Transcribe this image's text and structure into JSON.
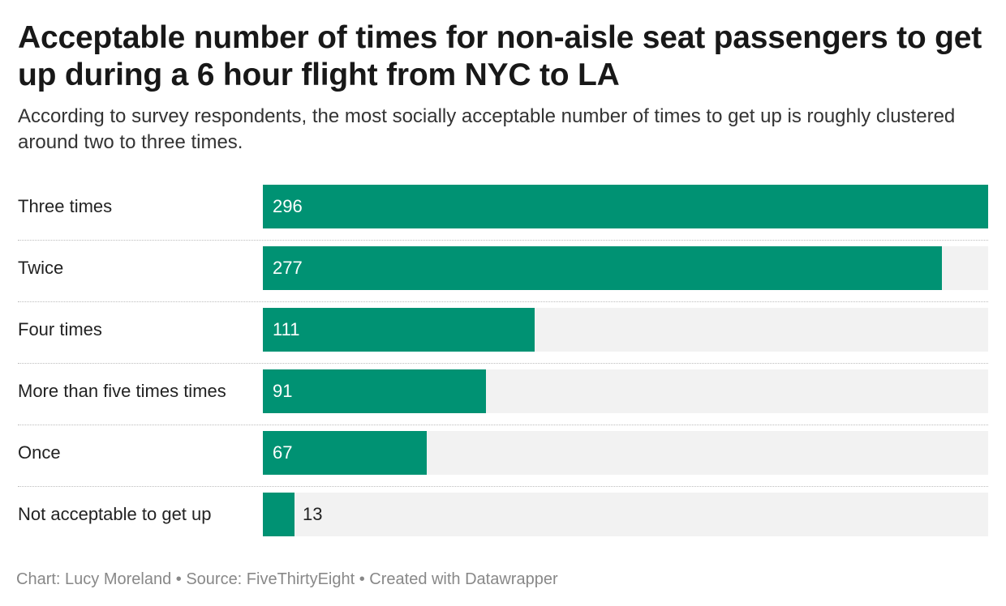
{
  "chart_data": {
    "type": "bar",
    "orientation": "horizontal",
    "title": "Acceptable number of times for non-aisle seat passengers to get up during a 6 hour flight from NYC to LA",
    "subtitle": "According to survey respondents, the most socially acceptable number of times to get up is roughly clustered around two to three times.",
    "categories": [
      "Three times",
      "Twice",
      "Four times",
      "More than five times times",
      "Once",
      "Not acceptable to get up"
    ],
    "values": [
      296,
      277,
      111,
      91,
      67,
      13
    ],
    "xlim": [
      0,
      296
    ],
    "bar_color": "#009273",
    "track_color": "#f2f2f2",
    "grid": false
  },
  "footer": {
    "text": "Chart: Lucy Moreland • Source: FiveThirtyEight • Created with Datawrapper"
  }
}
